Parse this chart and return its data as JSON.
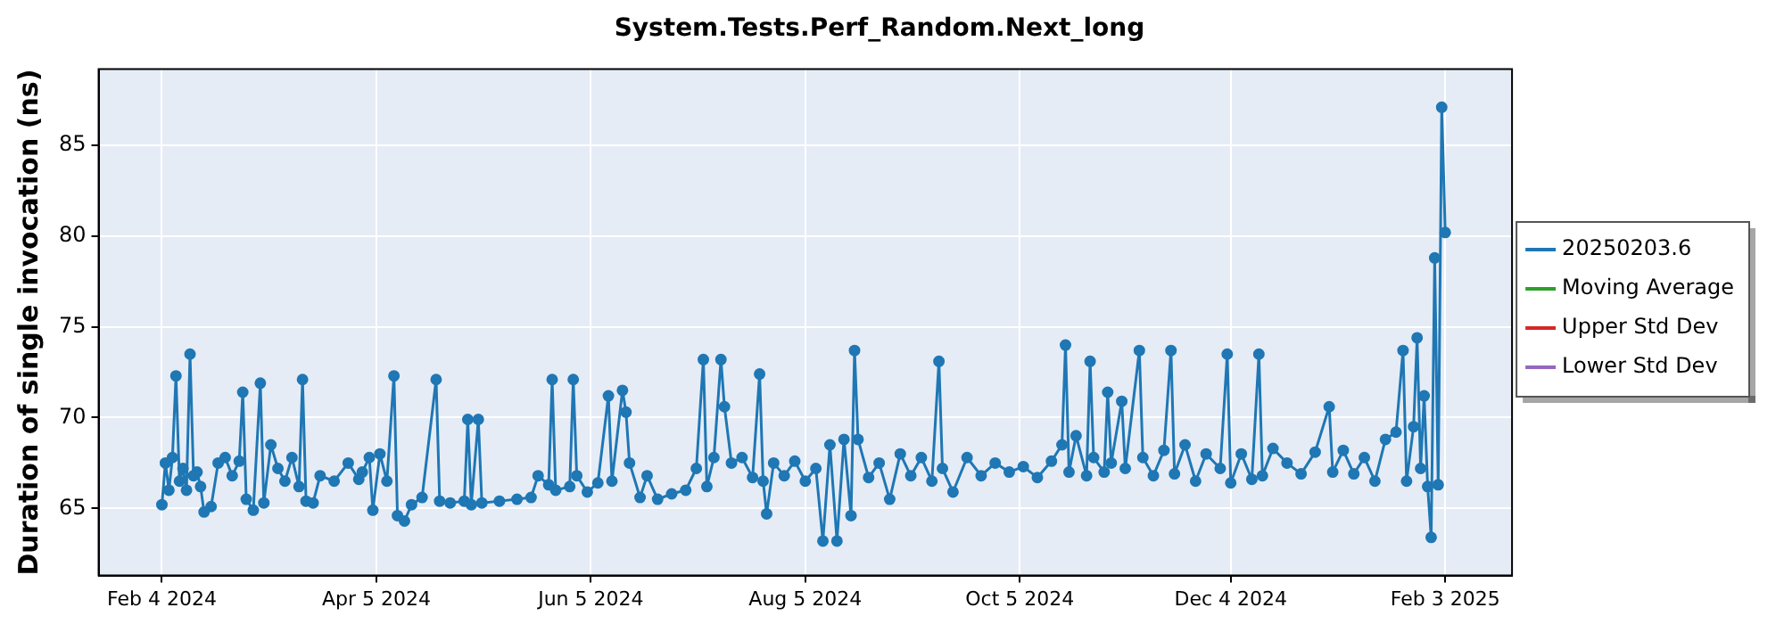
{
  "chart_data": {
    "type": "line",
    "title": "System.Tests.Perf_Random.Next_long",
    "ylabel": "Duration of single invocation (ns)",
    "x": [
      "2024-02-04",
      "2024-02-05",
      "2024-02-06",
      "2024-02-07",
      "2024-02-08",
      "2024-02-09",
      "2024-02-10",
      "2024-02-11",
      "2024-02-12",
      "2024-02-13",
      "2024-02-14",
      "2024-02-15",
      "2024-02-16",
      "2024-02-18",
      "2024-02-20",
      "2024-02-22",
      "2024-02-24",
      "2024-02-26",
      "2024-02-27",
      "2024-02-28",
      "2024-03-01",
      "2024-03-03",
      "2024-03-04",
      "2024-03-06",
      "2024-03-08",
      "2024-03-10",
      "2024-03-12",
      "2024-03-14",
      "2024-03-15",
      "2024-03-16",
      "2024-03-18",
      "2024-03-20",
      "2024-03-24",
      "2024-03-28",
      "2024-03-31",
      "2024-04-01",
      "2024-04-03",
      "2024-04-04",
      "2024-04-06",
      "2024-04-08",
      "2024-04-10",
      "2024-04-11",
      "2024-04-13",
      "2024-04-15",
      "2024-04-18",
      "2024-04-22",
      "2024-04-23",
      "2024-04-26",
      "2024-04-30",
      "2024-05-01",
      "2024-05-02",
      "2024-05-04",
      "2024-05-05",
      "2024-05-10",
      "2024-05-15",
      "2024-05-19",
      "2024-05-21",
      "2024-05-24",
      "2024-05-25",
      "2024-05-26",
      "2024-05-30",
      "2024-05-31",
      "2024-06-01",
      "2024-06-04",
      "2024-06-07",
      "2024-06-10",
      "2024-06-11",
      "2024-06-14",
      "2024-06-15",
      "2024-06-16",
      "2024-06-19",
      "2024-06-21",
      "2024-06-24",
      "2024-06-28",
      "2024-07-02",
      "2024-07-05",
      "2024-07-07",
      "2024-07-08",
      "2024-07-10",
      "2024-07-12",
      "2024-07-13",
      "2024-07-15",
      "2024-07-18",
      "2024-07-21",
      "2024-07-23",
      "2024-07-24",
      "2024-07-25",
      "2024-07-27",
      "2024-07-30",
      "2024-08-02",
      "2024-08-05",
      "2024-08-08",
      "2024-08-10",
      "2024-08-12",
      "2024-08-14",
      "2024-08-16",
      "2024-08-18",
      "2024-08-19",
      "2024-08-20",
      "2024-08-23",
      "2024-08-26",
      "2024-08-29",
      "2024-09-01",
      "2024-09-04",
      "2024-09-07",
      "2024-09-10",
      "2024-09-12",
      "2024-09-13",
      "2024-09-16",
      "2024-09-20",
      "2024-09-24",
      "2024-09-28",
      "2024-10-02",
      "2024-10-06",
      "2024-10-10",
      "2024-10-14",
      "2024-10-17",
      "2024-10-18",
      "2024-10-19",
      "2024-10-21",
      "2024-10-24",
      "2024-10-25",
      "2024-10-26",
      "2024-10-29",
      "2024-10-30",
      "2024-10-31",
      "2024-11-03",
      "2024-11-04",
      "2024-11-08",
      "2024-11-09",
      "2024-11-12",
      "2024-11-15",
      "2024-11-17",
      "2024-11-18",
      "2024-11-21",
      "2024-11-24",
      "2024-11-27",
      "2024-12-01",
      "2024-12-03",
      "2024-12-04",
      "2024-12-07",
      "2024-12-10",
      "2024-12-12",
      "2024-12-13",
      "2024-12-16",
      "2024-12-20",
      "2024-12-24",
      "2024-12-28",
      "2025-01-01",
      "2025-01-02",
      "2025-01-05",
      "2025-01-08",
      "2025-01-11",
      "2025-01-14",
      "2025-01-17",
      "2025-01-20",
      "2025-01-22",
      "2025-01-23",
      "2025-01-25",
      "2025-01-26",
      "2025-01-27",
      "2025-01-28",
      "2025-01-29",
      "2025-01-30",
      "2025-01-31",
      "2025-02-01",
      "2025-02-02",
      "2025-02-03"
    ],
    "series": [
      {
        "name": "20250203.6",
        "color": "#1f77b4",
        "values": [
          65.2,
          67.5,
          66.0,
          67.8,
          72.3,
          66.5,
          67.2,
          66.0,
          73.5,
          66.8,
          67.0,
          66.2,
          64.8,
          65.1,
          67.5,
          67.8,
          66.8,
          67.6,
          71.4,
          65.5,
          64.9,
          71.9,
          65.3,
          68.5,
          67.2,
          66.5,
          67.8,
          66.2,
          72.1,
          65.4,
          65.3,
          66.8,
          66.5,
          67.5,
          66.6,
          67.0,
          67.8,
          64.9,
          68.0,
          66.5,
          72.3,
          64.6,
          64.3,
          65.2,
          65.6,
          72.1,
          65.4,
          65.3,
          65.4,
          69.9,
          65.2,
          69.9,
          65.3,
          65.4,
          65.5,
          65.6,
          66.8,
          66.3,
          72.1,
          66.0,
          66.2,
          72.1,
          66.8,
          65.9,
          66.4,
          71.2,
          66.5,
          71.5,
          70.3,
          67.5,
          65.6,
          66.8,
          65.5,
          65.8,
          66.0,
          67.2,
          73.2,
          66.2,
          67.8,
          73.2,
          70.6,
          67.5,
          67.8,
          66.7,
          72.4,
          66.5,
          64.7,
          67.5,
          66.8,
          67.6,
          66.5,
          67.2,
          63.2,
          68.5,
          63.2,
          68.8,
          64.6,
          73.7,
          68.8,
          66.7,
          67.5,
          65.5,
          68.0,
          66.8,
          67.8,
          66.5,
          73.1,
          67.2,
          65.9,
          67.8,
          66.8,
          67.5,
          67.0,
          67.3,
          66.7,
          67.6,
          68.5,
          74.0,
          67.0,
          69.0,
          66.8,
          73.1,
          67.8,
          67.0,
          71.4,
          67.5,
          70.9,
          67.2,
          73.7,
          67.8,
          66.8,
          68.2,
          73.7,
          66.9,
          68.5,
          66.5,
          68.0,
          67.2,
          73.5,
          66.4,
          68.0,
          66.6,
          73.5,
          66.8,
          68.3,
          67.5,
          66.9,
          68.1,
          70.6,
          67.0,
          68.2,
          66.9,
          67.8,
          66.5,
          68.8,
          69.2,
          73.7,
          66.5,
          69.5,
          74.4,
          67.2,
          71.2,
          66.2,
          63.4,
          78.8,
          66.3,
          87.1,
          80.2
        ]
      },
      {
        "name": "Moving Average",
        "color": "#2ca02c",
        "values": [
          null,
          null,
          null,
          null,
          null,
          null,
          null,
          null,
          null,
          null,
          null,
          null,
          null,
          null,
          null,
          null,
          null,
          null,
          null,
          null,
          null,
          null,
          null,
          null,
          null,
          null,
          null,
          null,
          null,
          null,
          null,
          null,
          null,
          null,
          null,
          null,
          null,
          null,
          null,
          null,
          null,
          null,
          null,
          null,
          null,
          null,
          null,
          null,
          null,
          null,
          null,
          null,
          null,
          null,
          null,
          null,
          null,
          null,
          null,
          null,
          null,
          null,
          null,
          null,
          null,
          null,
          null,
          null,
          null,
          null,
          null,
          null,
          null,
          null,
          null,
          null,
          null,
          null,
          null,
          null,
          null,
          null,
          null,
          null,
          null,
          null,
          null,
          null,
          null,
          null,
          null,
          null,
          null,
          null,
          null,
          null,
          null,
          null,
          null,
          null,
          null,
          null,
          null,
          null,
          null,
          null,
          null,
          null,
          null,
          null,
          null,
          null,
          null,
          null,
          null,
          null,
          null,
          null,
          null,
          null,
          null,
          null,
          null,
          null,
          null,
          null,
          null,
          null,
          null,
          null,
          null,
          null,
          null,
          null,
          null,
          null,
          null,
          null,
          null,
          null,
          null,
          null,
          null,
          null,
          null,
          null,
          null,
          null,
          null,
          null,
          null,
          null,
          null,
          null,
          null,
          null,
          null,
          null,
          null,
          null,
          null,
          null,
          null,
          null,
          null,
          null,
          null,
          null
        ]
      },
      {
        "name": "Upper Std Dev",
        "color": "#d62728",
        "values": [
          null,
          null,
          null,
          null,
          null,
          null,
          null,
          null,
          null,
          null,
          null,
          null,
          null,
          null,
          null,
          null,
          null,
          null,
          null,
          null,
          null,
          null,
          null,
          null,
          null,
          null,
          null,
          null,
          null,
          null,
          null,
          null,
          null,
          null,
          null,
          null,
          null,
          null,
          null,
          null,
          null,
          null,
          null,
          null,
          null,
          null,
          null,
          null,
          null,
          null,
          null,
          null,
          null,
          null,
          null,
          null,
          null,
          null,
          null,
          null,
          null,
          null,
          null,
          null,
          null,
          null,
          null,
          null,
          null,
          null,
          null,
          null,
          null,
          null,
          null,
          null,
          null,
          null,
          null,
          null,
          null,
          null,
          null,
          null,
          null,
          null,
          null,
          null,
          null,
          null,
          null,
          null,
          null,
          null,
          null,
          null,
          null,
          null,
          null,
          null,
          null,
          null,
          null,
          null,
          null,
          null,
          null,
          null,
          null,
          null,
          null,
          null,
          null,
          null,
          null,
          null,
          null,
          null,
          null,
          null,
          null,
          null,
          null,
          null,
          null,
          null,
          null,
          null,
          null,
          null,
          null,
          null,
          null,
          null,
          null,
          null,
          null,
          null,
          null,
          null,
          null,
          null,
          null,
          null,
          null,
          null,
          null,
          null,
          null,
          null,
          null,
          null,
          null,
          null,
          null,
          null,
          null,
          null,
          null,
          null,
          null,
          null,
          null,
          null,
          null,
          null,
          null,
          null
        ]
      },
      {
        "name": "Lower Std Dev",
        "color": "#9467bd",
        "values": [
          null,
          null,
          null,
          null,
          null,
          null,
          null,
          null,
          null,
          null,
          null,
          null,
          null,
          null,
          null,
          null,
          null,
          null,
          null,
          null,
          null,
          null,
          null,
          null,
          null,
          null,
          null,
          null,
          null,
          null,
          null,
          null,
          null,
          null,
          null,
          null,
          null,
          null,
          null,
          null,
          null,
          null,
          null,
          null,
          null,
          null,
          null,
          null,
          null,
          null,
          null,
          null,
          null,
          null,
          null,
          null,
          null,
          null,
          null,
          null,
          null,
          null,
          null,
          null,
          null,
          null,
          null,
          null,
          null,
          null,
          null,
          null,
          null,
          null,
          null,
          null,
          null,
          null,
          null,
          null,
          null,
          null,
          null,
          null,
          null,
          null,
          null,
          null,
          null,
          null,
          null,
          null,
          null,
          null,
          null,
          null,
          null,
          null,
          null,
          null,
          null,
          null,
          null,
          null,
          null,
          null,
          null,
          null,
          null,
          null,
          null,
          null,
          null,
          null,
          null,
          null,
          null,
          null,
          null,
          null,
          null,
          null,
          null,
          null,
          null,
          null,
          null,
          null,
          null,
          null,
          null,
          null,
          null,
          null,
          null,
          null,
          null,
          null,
          null,
          null,
          null,
          null,
          null,
          null,
          null,
          null,
          null,
          null,
          null,
          null,
          null,
          null,
          null,
          null,
          null,
          null,
          null,
          null,
          null,
          null,
          null,
          null,
          null,
          null,
          null,
          null,
          null,
          null
        ]
      }
    ],
    "xlim": [
      "2024-01-17",
      "2025-02-22"
    ],
    "xticks": [
      {
        "value": "2024-02-04",
        "label": "Feb 4 2024"
      },
      {
        "value": "2024-04-05",
        "label": "Apr 5 2024"
      },
      {
        "value": "2024-06-05",
        "label": "Jun 5 2024"
      },
      {
        "value": "2024-08-05",
        "label": "Aug 5 2024"
      },
      {
        "value": "2024-10-05",
        "label": "Oct 5 2024"
      },
      {
        "value": "2024-12-04",
        "label": "Dec 4 2024"
      },
      {
        "value": "2025-02-03",
        "label": "Feb 3 2025"
      }
    ],
    "ylim": [
      61.3,
      89.2
    ],
    "yticks": [
      65,
      70,
      75,
      80,
      85
    ],
    "grid": true,
    "legend": "right",
    "marker": "circle",
    "line_style": "solid"
  }
}
